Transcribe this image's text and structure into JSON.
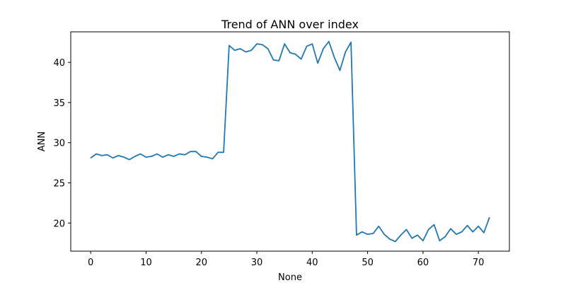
{
  "chart_data": {
    "type": "line",
    "title": "Trend of ANN over index",
    "xlabel": "None",
    "ylabel": "ANN",
    "xlim": [
      -3.6,
      75.6
    ],
    "ylim": [
      16.5,
      43.8
    ],
    "xticks": [
      0,
      10,
      20,
      30,
      40,
      50,
      60,
      70
    ],
    "yticks": [
      20,
      25,
      30,
      35,
      40
    ],
    "grid": false,
    "series": [
      {
        "color": "#1f77b4",
        "x": [
          0,
          1,
          2,
          3,
          4,
          5,
          6,
          7,
          8,
          9,
          10,
          11,
          12,
          13,
          14,
          15,
          16,
          17,
          18,
          19,
          20,
          21,
          22,
          23,
          24,
          25,
          26,
          27,
          28,
          29,
          30,
          31,
          32,
          33,
          34,
          35,
          36,
          37,
          38,
          39,
          40,
          41,
          42,
          43,
          44,
          45,
          46,
          47,
          48,
          49,
          50,
          51,
          52,
          53,
          54,
          55,
          56,
          57,
          58,
          59,
          60,
          61,
          62,
          63,
          64,
          65,
          66,
          67,
          68,
          69,
          70,
          71,
          72
        ],
        "values": [
          28.1,
          28.6,
          28.4,
          28.5,
          28.1,
          28.4,
          28.2,
          27.9,
          28.3,
          28.6,
          28.2,
          28.3,
          28.6,
          28.2,
          28.5,
          28.3,
          28.6,
          28.5,
          28.9,
          28.9,
          28.3,
          28.2,
          28.0,
          28.8,
          28.8,
          42.1,
          41.5,
          41.7,
          41.3,
          41.5,
          42.3,
          42.2,
          41.7,
          40.3,
          40.2,
          42.3,
          41.2,
          41.0,
          40.4,
          42.0,
          42.3,
          39.9,
          41.7,
          42.6,
          40.6,
          39.0,
          41.3,
          42.5,
          18.5,
          18.9,
          18.6,
          18.7,
          19.6,
          18.6,
          18.0,
          17.7,
          18.5,
          19.2,
          18.1,
          18.5,
          17.8,
          19.2,
          19.8,
          17.8,
          18.3,
          19.3,
          18.6,
          18.9,
          19.7,
          18.9,
          19.6,
          18.8,
          20.7
        ]
      }
    ]
  }
}
